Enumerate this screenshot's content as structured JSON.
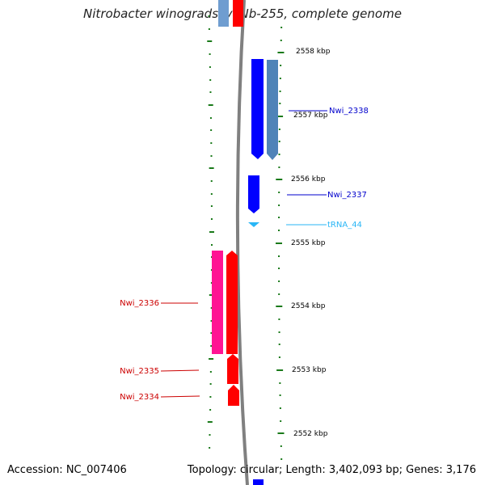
{
  "title": "Nitrobacter winogradskyi Nb-255, complete genome",
  "footer": {
    "accession": "Accession: NC_007406",
    "topology": "Topology: circular; Length: 3,402,093 bp; Genes: 3,176"
  },
  "colors": {
    "ruler_tick": "#1a7a1a",
    "backbone": "#808080",
    "cds_blue": "#0000ff",
    "cds_steel": "#4f83b8",
    "cds_red": "#ff0000",
    "cds_pink": "#ff1493",
    "trna": "#29b6f6",
    "label_blue": "#0000cc",
    "label_red": "#cc0000",
    "label_cyan": "#29b6f6"
  },
  "scale": {
    "unit": "kbp",
    "ticks": [
      "2558 kbp",
      "2557 kbp",
      "2556 kbp",
      "2555 kbp",
      "2554 kbp",
      "2553 kbp",
      "2552 kbp"
    ]
  },
  "features": [
    {
      "id": "nwi2338-fwd",
      "label": "",
      "type": "CDS",
      "strand": "reverse",
      "color": "cds_blue",
      "start_kbp": 2556.65,
      "end_kbp": 2558.1
    },
    {
      "id": "nwi2338-steel",
      "label": "Nwi_2338",
      "type": "CDS",
      "strand": "reverse",
      "color": "cds_steel",
      "start_kbp": 2556.65,
      "end_kbp": 2558.1
    },
    {
      "id": "nwi2337",
      "label": "Nwi_2337",
      "type": "CDS",
      "strand": "reverse",
      "color": "cds_blue",
      "start_kbp": 2555.65,
      "end_kbp": 2556.05
    },
    {
      "id": "trna44",
      "label": "tRNA_44",
      "type": "tRNA",
      "strand": "reverse",
      "color": "trna",
      "start_kbp": 2555.2,
      "end_kbp": 2555.28
    },
    {
      "id": "nwi2336-pink",
      "label": "",
      "type": "CDS",
      "strand": "forward",
      "color": "cds_pink",
      "start_kbp": 2553.25,
      "end_kbp": 2554.85
    },
    {
      "id": "nwi2336",
      "label": "Nwi_2336",
      "type": "CDS",
      "strand": "forward",
      "color": "cds_red",
      "start_kbp": 2553.25,
      "end_kbp": 2554.85
    },
    {
      "id": "nwi2335",
      "label": "Nwi_2335",
      "type": "CDS",
      "strand": "forward",
      "color": "cds_red",
      "start_kbp": 2552.82,
      "end_kbp": 2553.25
    },
    {
      "id": "nwi2334",
      "label": "Nwi_2334",
      "type": "CDS",
      "strand": "forward",
      "color": "cds_red",
      "start_kbp": 2552.45,
      "end_kbp": 2552.82
    }
  ]
}
